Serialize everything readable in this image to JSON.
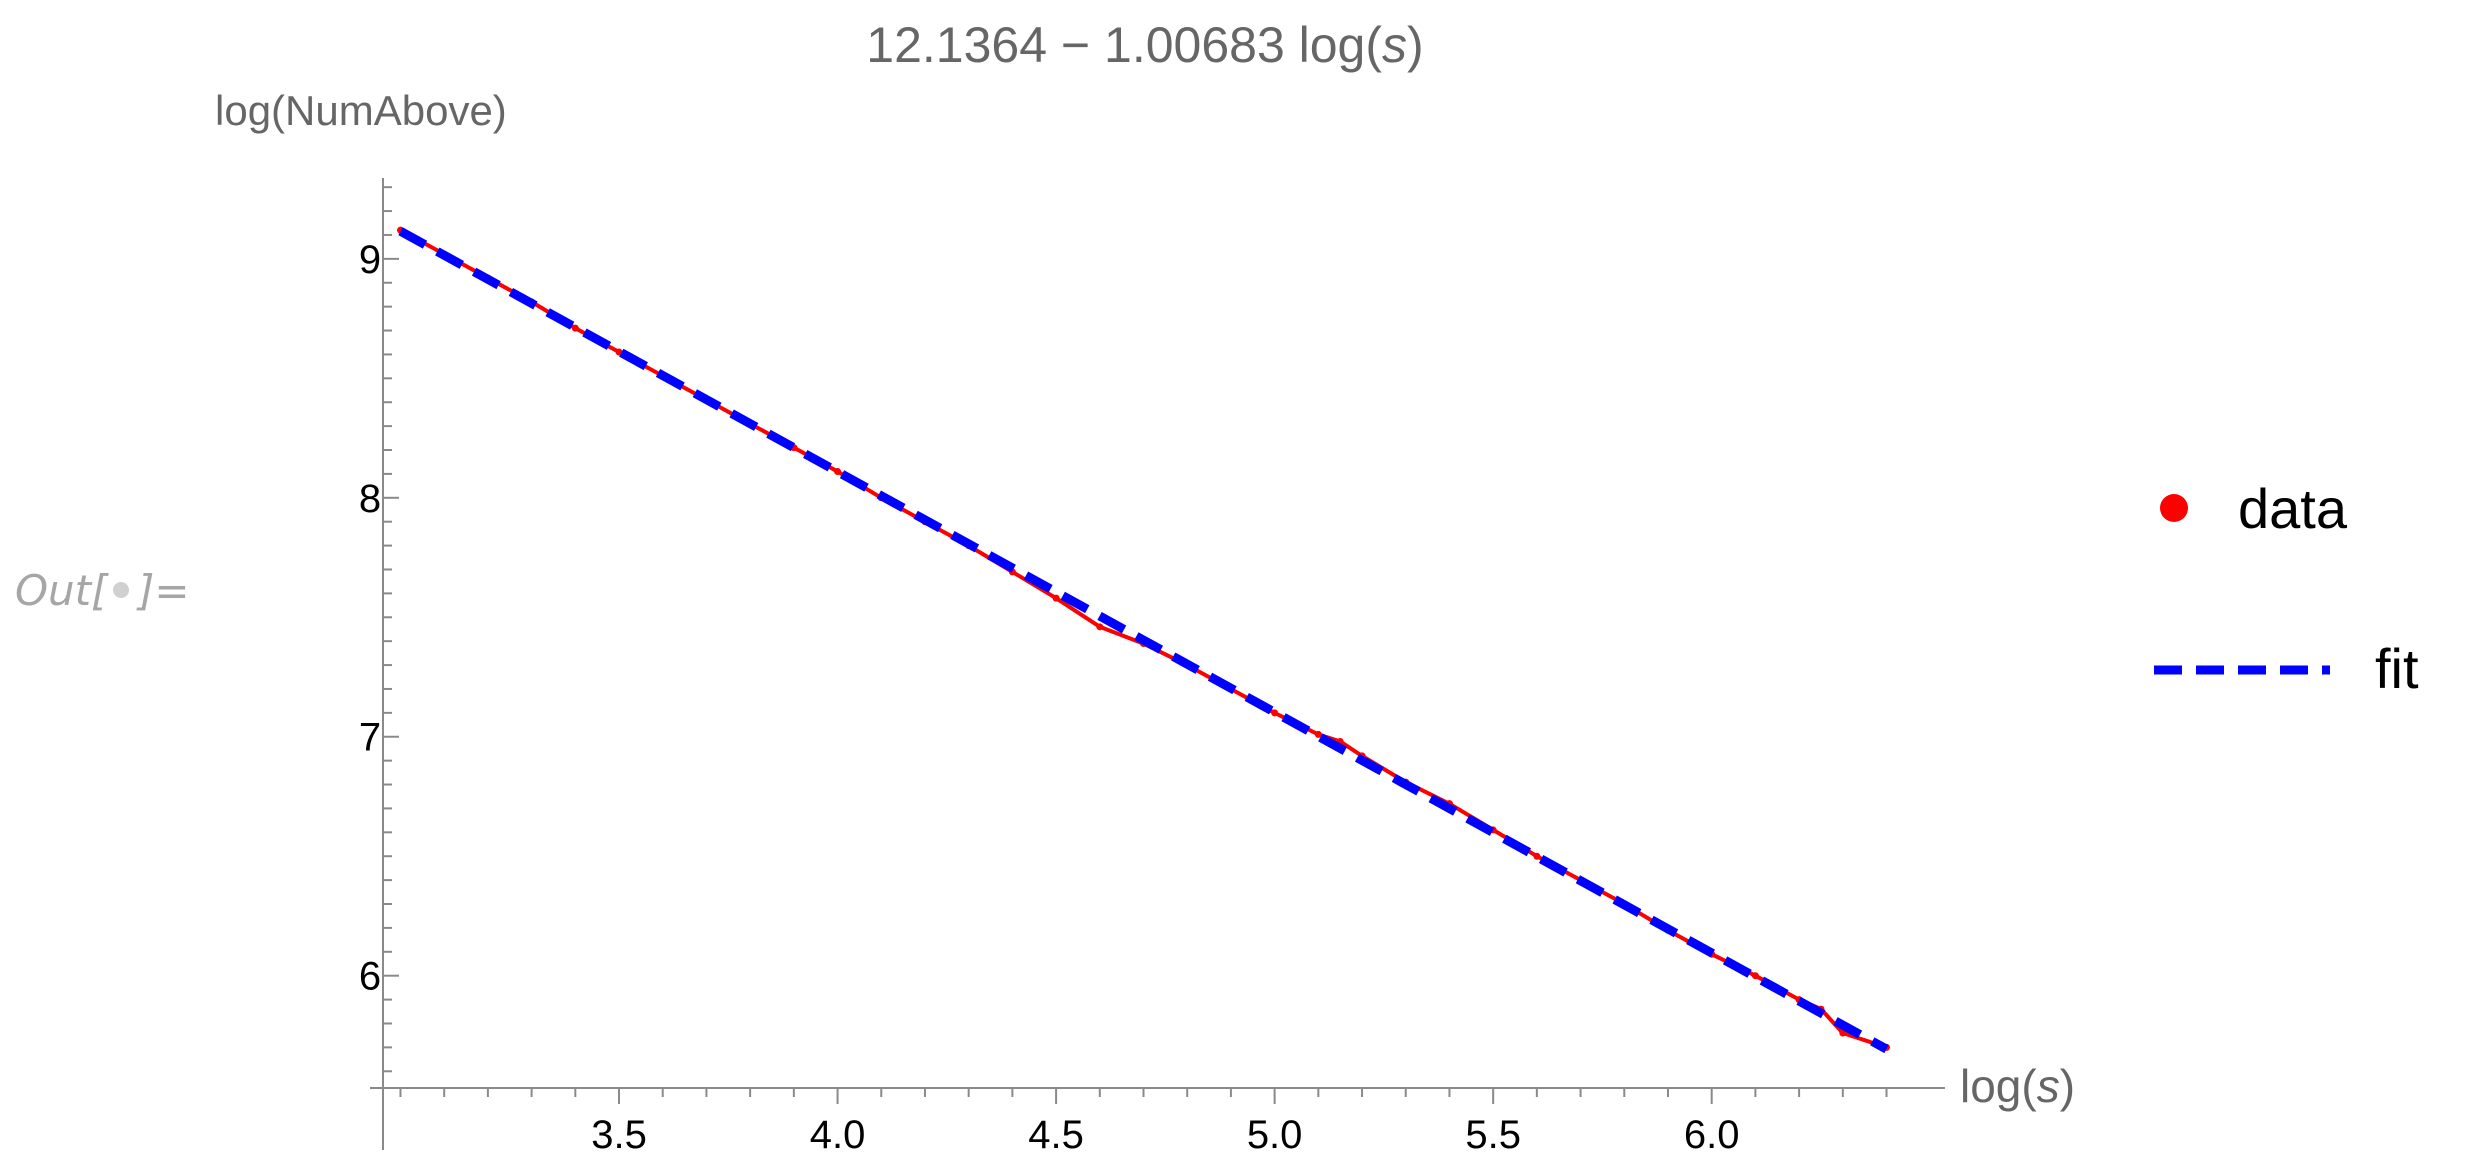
{
  "cell": {
    "out_prefix": "Out[",
    "out_suffix": "]=",
    "out_color": "#a6a6a6",
    "out_dot_color": "#d0d0d0"
  },
  "chart_data": {
    "type": "scatter",
    "title_parts": {
      "prefix": "12.1364 − 1.00683 log(",
      "var": "s",
      "suffix": ")"
    },
    "xlabel_parts": {
      "prefix": "log(",
      "var": "s",
      "suffix": ")"
    },
    "ylabel": "log(NumAbove)",
    "x_ticks": [
      3.5,
      4.0,
      4.5,
      5.0,
      5.5,
      6.0
    ],
    "x_tick_labels": [
      "3.5",
      "4.0",
      "4.5",
      "5.0",
      "5.5",
      "6.0"
    ],
    "y_ticks": [
      6,
      7,
      8,
      9
    ],
    "y_tick_labels": [
      "6",
      "7",
      "8",
      "9"
    ],
    "xlim": [
      2.96,
      6.44
    ],
    "ylim": [
      5.53,
      9.33
    ],
    "x_axis_crossing_y": 5.53,
    "y_axis_crossing_x": 2.96,
    "grid": false,
    "legend_position": "right",
    "legend": [
      {
        "label": "data",
        "marker": "dot"
      },
      {
        "label": "fit",
        "marker": "dashed-line"
      }
    ],
    "series": [
      {
        "name": "data",
        "style": "points",
        "color": "#ff0000",
        "x": [
          3.0,
          3.1,
          3.2,
          3.3,
          3.4,
          3.5,
          3.6,
          3.7,
          3.8,
          3.9,
          4.0,
          4.1,
          4.2,
          4.3,
          4.4,
          4.5,
          4.6,
          4.7,
          4.8,
          4.9,
          5.0,
          5.1,
          5.15,
          5.2,
          5.3,
          5.4,
          5.5,
          5.6,
          5.7,
          5.8,
          5.9,
          6.0,
          6.1,
          6.2,
          6.25,
          6.3,
          6.4
        ],
        "y": [
          9.12,
          9.02,
          8.92,
          8.82,
          8.71,
          8.61,
          8.51,
          8.41,
          8.31,
          8.21,
          8.11,
          8.0,
          7.9,
          7.8,
          7.69,
          7.58,
          7.46,
          7.39,
          7.3,
          7.2,
          7.1,
          7.01,
          6.98,
          6.92,
          6.81,
          6.72,
          6.61,
          6.5,
          6.4,
          6.3,
          6.19,
          6.09,
          6.0,
          5.9,
          5.86,
          5.76,
          5.7
        ]
      },
      {
        "name": "fit",
        "style": "dashed-line",
        "color": "#0000ff",
        "intercept": 12.1364,
        "slope": -1.00683,
        "x_range": [
          3.0,
          6.4
        ]
      }
    ]
  }
}
